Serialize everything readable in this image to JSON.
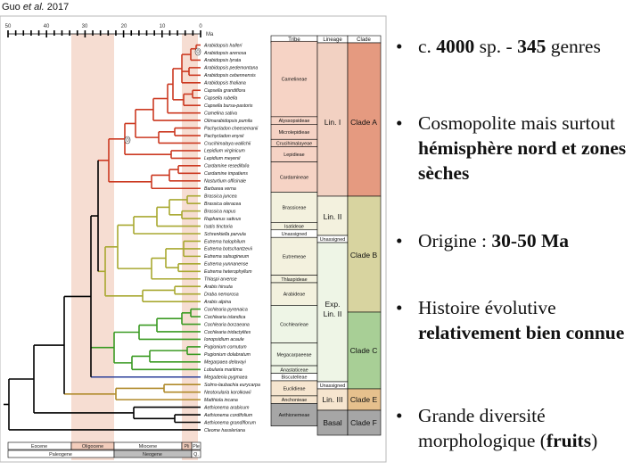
{
  "caption": {
    "author": "Guo",
    "etal": "et al.",
    "year": "2017"
  },
  "axis": {
    "ticks": [
      "50",
      "40",
      "30",
      "20",
      "10",
      "0"
    ],
    "unit": "Ma"
  },
  "table_headers": {
    "tribe": "Tribe",
    "lineage": "Lineage",
    "clade": "Clade"
  },
  "species": [
    "Arabidopsis halleri",
    "Arabidopsis arenosa",
    "Arabidopsis lyrata",
    "Arabidopsis pedemontana",
    "Arabidopsis cebennensis",
    "Arabidopsis thaliana",
    "Capsella grandiflora",
    "Capsella rubella",
    "Capsella bursa-pastoris",
    "Camelina sativa",
    "Olimarabidopsis pumila",
    "Pachycladon cheesemanii",
    "Pachycladon enysii",
    "Crucihimalaya wallichii",
    "Lepidium virginicum",
    "Lepidium meyenii",
    "Cardamine resedifolia",
    "Cardamine impatiens",
    "Nasturtium officinale",
    "Barbarea verna",
    "Brassica juncea",
    "Brassica oleracea",
    "Brassica napus",
    "Raphanus sativus",
    "Isatis tinctoria",
    "Schrenkiella parvula",
    "Eutrema halophilum",
    "Eutrema botschantzevii",
    "Eutrema salsugineum",
    "Eutrema yunnanense",
    "Eutrema heterophyllum",
    "Thlaspi arvense",
    "Arabis hirsuta",
    "Draba nemorosa",
    "Arabis alpina",
    "Cochlearia pyrenaica",
    "Cochlearia islandica",
    "Cochlearia borzaeana",
    "Cochlearia tridactylites",
    "Ionopsidium acaule",
    "Pugionium cornutum",
    "Pugionium dolabratum",
    "Megarpaea delavayi",
    "Lobularia maritima",
    "Megadenia pygmaea",
    "Solms-laubachia eurycarpa",
    "Neotorularia korolkowii",
    "Matthiola incana",
    "Aethionema arabicum",
    "Aethionema cordifolium",
    "Aethionema grandiflorum",
    "Cleome hassleriana"
  ],
  "tribes": [
    {
      "name": "Camelineae"
    },
    {
      "name": "Alyssopsideae"
    },
    {
      "name": "Microlepidieae"
    },
    {
      "name": "Crucihimalayeae"
    },
    {
      "name": "Lepidieae"
    },
    {
      "name": "Cardamineae"
    },
    {
      "name": "Brassiceae"
    },
    {
      "name": "Isatideae"
    },
    {
      "name": "Unassigned"
    },
    {
      "name": "Eutremeae"
    },
    {
      "name": "Thlaspideae"
    },
    {
      "name": "Arabideae"
    },
    {
      "name": "Cochleariеae"
    },
    {
      "name": "Megacarpaeeae"
    },
    {
      "name": "Anastaticeae"
    },
    {
      "name": "Biscutelleae"
    },
    {
      "name": "Euclidieae"
    },
    {
      "name": "Anchonieae"
    },
    {
      "name": "Aethionemeae"
    }
  ],
  "lineages": {
    "lin1": "Lin. I",
    "lin2": "Lin. II",
    "unassigned": "Unassigned",
    "exp1": "Exp.",
    "exp2": "Lin. II",
    "unassigned2": "Unassigned",
    "lin3": "Lin. III",
    "basal": "Basal"
  },
  "clades": {
    "a": "Clade A",
    "b": "Clade B",
    "c": "Clade C",
    "e": "Clade E",
    "f": "Clade F"
  },
  "epochs": {
    "eocene": "Eocene",
    "oligocene": "Oligocene",
    "miocene": "Miocene",
    "pli": "Pli",
    "ple": "Ple",
    "paleogene": "Paleogene",
    "neogene": "Neogene",
    "q": "Q."
  },
  "node_labels": {
    "n1": "0",
    "n2": "0"
  },
  "colors": {
    "clade_a": "#e59a80",
    "clade_b": "#d8d4a0",
    "clade_c": "#a8cf96",
    "clade_e": "#e6c08d",
    "clade_f": "#a6a6a6",
    "red_branch": "#cc3a22",
    "olive_branch": "#a8a830",
    "green_branch": "#3a9a22",
    "blue_branch": "#2b3f9a",
    "brown_branch": "#b08a2a",
    "black_branch": "#000000"
  },
  "bullets": [
    {
      "b1": "c. ",
      "b2": "4000",
      "b3": " sp. - ",
      "b4": "345",
      "b5": " genres"
    },
    {
      "t1": "Cosmopolite mais surtout ",
      "t2": "hémisphère nord et zones sèches"
    },
    {
      "t1": "Origine : ",
      "t2": "30-50 Ma"
    },
    {
      "t1": "Histoire évolutive ",
      "t2": "relativement bien connue"
    },
    {
      "t1": "Grande diversité morphologique (",
      "t2": "fruits",
      "t3": ")"
    }
  ],
  "bullet_glyph": "•"
}
